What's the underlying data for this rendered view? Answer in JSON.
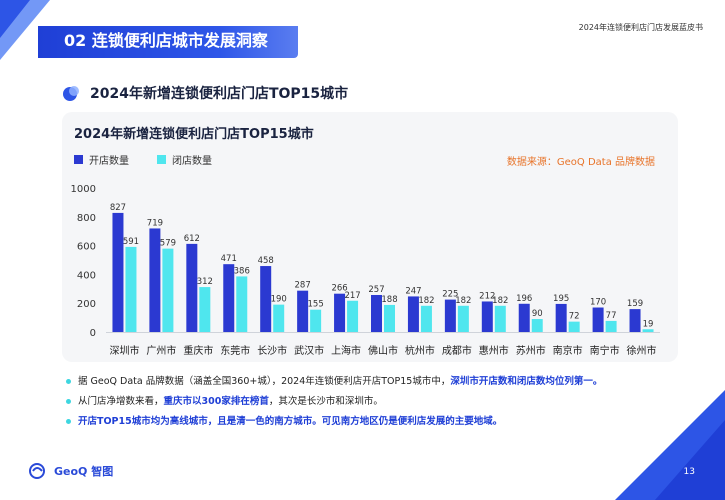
{
  "header": {
    "section_title": "02 连锁便利店城市发展洞察",
    "book_title": "2024年连锁便利店门店发展蓝皮书"
  },
  "subheading": "2024年新增连锁便利店门店TOP15城市",
  "legend": {
    "open": "开店数量",
    "close": "闭店数量"
  },
  "source": "数据来源：GeoQ Data 品牌数据",
  "notes": [
    {
      "plain": "据 GeoQ Data 品牌数据（涵盖全国360+城），2024年连锁便利店开店TOP15城市中，",
      "highlight": "深圳市开店数和闭店数均位列第一。"
    },
    {
      "plain_1": "从门店净增数来看，",
      "highlight": "重庆市以300家排在榜首",
      "plain_2": "，其次是长沙市和深圳市。"
    },
    {
      "highlight": "开店TOP15城市均为高线城市，且是清一色的南方城市。可见南方地区仍是便利店发展的主要地域。"
    }
  ],
  "footer": {
    "logo_text": "GeoQ 智图",
    "page_number": "13"
  },
  "colors": {
    "open": "#2b39d1",
    "close": "#4fe6ee",
    "accent_blue": "#1f3fd6",
    "source_orange": "#e8742a"
  },
  "chart_data": {
    "type": "bar",
    "title": "2024年新增连锁便利店门店TOP15城市",
    "categories": [
      "深圳市",
      "广州市",
      "重庆市",
      "东莞市",
      "长沙市",
      "武汉市",
      "上海市",
      "佛山市",
      "杭州市",
      "成都市",
      "惠州市",
      "苏州市",
      "南京市",
      "南宁市",
      "徐州市"
    ],
    "series": [
      {
        "name": "开店数量",
        "values": [
          827,
          719,
          612,
          471,
          458,
          287,
          266,
          257,
          247,
          225,
          212,
          196,
          195,
          170,
          159
        ]
      },
      {
        "name": "闭店数量",
        "values": [
          591,
          579,
          312,
          386,
          190,
          155,
          217,
          188,
          182,
          182,
          182,
          90,
          72,
          77,
          19
        ]
      }
    ],
    "yticks": [
      0,
      200,
      400,
      600,
      800,
      1000
    ],
    "ylim": [
      0,
      1000
    ],
    "grid": false,
    "legend_position": "top-left"
  }
}
